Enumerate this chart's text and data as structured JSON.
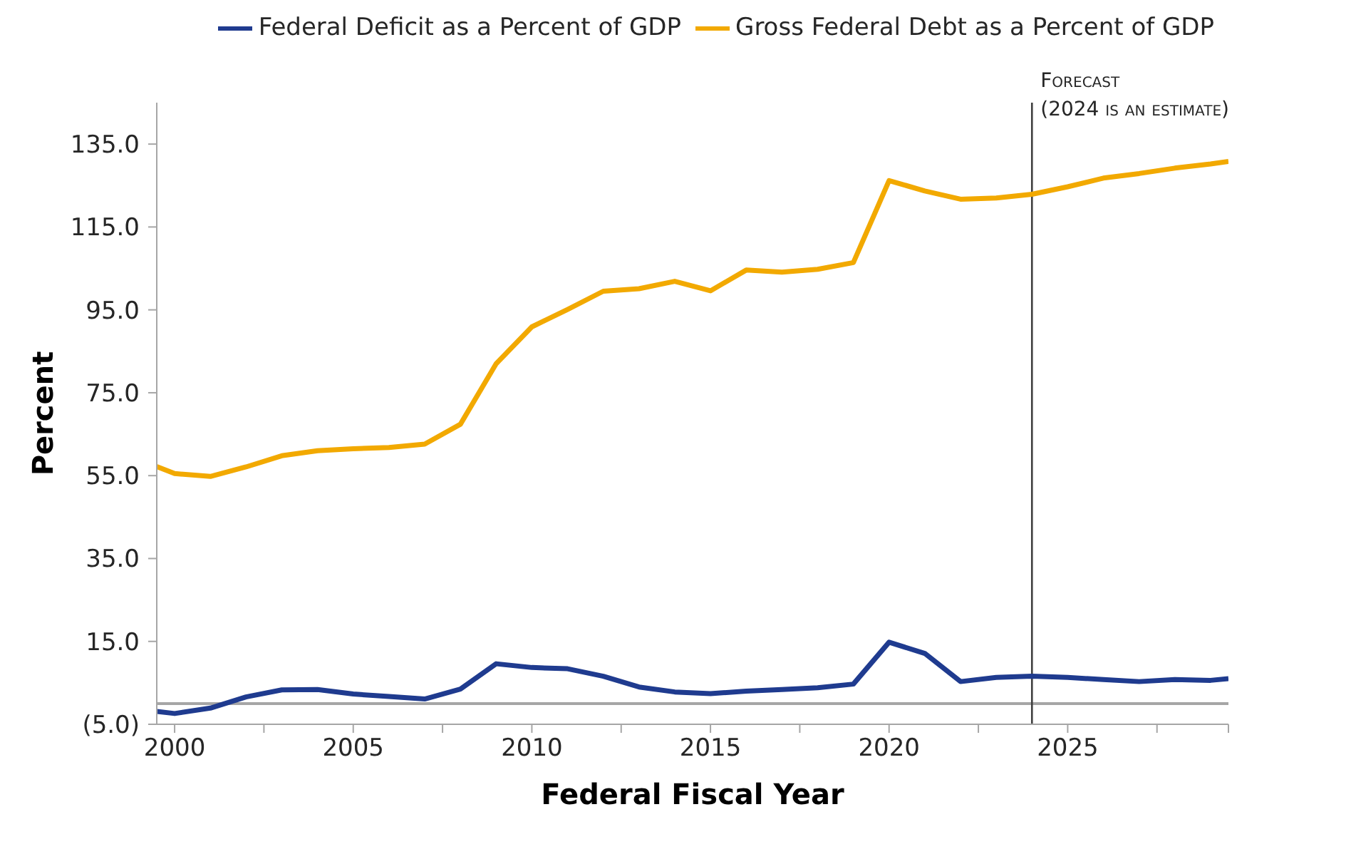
{
  "chart_data": {
    "type": "line",
    "xlabel": "Federal Fiscal Year",
    "ylabel": "Percent",
    "x": [
      1999.5,
      2000,
      2001,
      2002,
      2003,
      2004,
      2005,
      2006,
      2007,
      2008,
      2009,
      2010,
      2011,
      2012,
      2013,
      2014,
      2015,
      2016,
      2017,
      2018,
      2019,
      2020,
      2021,
      2022,
      2023,
      2024,
      2025,
      2026,
      2027,
      2028,
      2029,
      2029.5
    ],
    "series": [
      {
        "name": "Federal Deficit as a Percent of GDP",
        "color": "#1f3b8f",
        "values": [
          -1.9,
          -2.4,
          -1.1,
          1.6,
          3.3,
          3.4,
          2.3,
          1.7,
          1.1,
          3.5,
          9.6,
          8.7,
          8.4,
          6.6,
          4.0,
          2.8,
          2.4,
          3.0,
          3.4,
          3.8,
          4.7,
          14.8,
          12.1,
          5.3,
          6.3,
          6.6,
          6.3,
          5.8,
          5.3,
          5.8,
          5.6,
          6.0
        ]
      },
      {
        "name": "Gross Federal Debt as a Percent of GDP",
        "color": "#f2a900",
        "values": [
          57.2,
          55.5,
          54.8,
          57.1,
          59.8,
          61.0,
          61.5,
          61.8,
          62.6,
          67.4,
          82.0,
          90.9,
          95.1,
          99.5,
          100.1,
          101.9,
          99.6,
          104.6,
          104.1,
          104.8,
          106.4,
          126.2,
          123.7,
          121.7,
          122.0,
          122.9,
          124.7,
          126.8,
          127.9,
          129.2,
          130.2,
          130.8
        ]
      }
    ],
    "xlim": [
      1999.5,
      2029.5
    ],
    "xticks": [
      {
        "value": 2000,
        "label": "2000"
      },
      {
        "value": 2002.5,
        "label": null
      },
      {
        "value": 2005,
        "label": "2005"
      },
      {
        "value": 2007.5,
        "label": null
      },
      {
        "value": 2010,
        "label": "2010"
      },
      {
        "value": 2012.5,
        "label": null
      },
      {
        "value": 2015,
        "label": "2015"
      },
      {
        "value": 2017.5,
        "label": null
      },
      {
        "value": 2020,
        "label": "2020"
      },
      {
        "value": 2022.5,
        "label": null
      },
      {
        "value": 2025,
        "label": "2025"
      },
      {
        "value": 2027.5,
        "label": null
      },
      {
        "value": 2029.5,
        "label": null
      }
    ],
    "ylim": [
      -5,
      145
    ],
    "yticks": [
      {
        "value": -5,
        "label": "(5.0)"
      },
      {
        "value": 15,
        "label": "15.0"
      },
      {
        "value": 35,
        "label": "35.0"
      },
      {
        "value": 55,
        "label": "55.0"
      },
      {
        "value": 75,
        "label": "75.0"
      },
      {
        "value": 95,
        "label": "95.0"
      },
      {
        "value": 115,
        "label": "115.0"
      },
      {
        "value": 135,
        "label": "135.0"
      }
    ],
    "ref_lines": [
      {
        "axis": "y",
        "value": 0,
        "color": "#a6a6a6"
      },
      {
        "axis": "x",
        "value": 2024,
        "label": "Forecast\n(2024 is an estimate)",
        "color": "#404040"
      }
    ],
    "grid": false,
    "legend": "top right",
    "marker": "none",
    "line_style": "solid"
  }
}
